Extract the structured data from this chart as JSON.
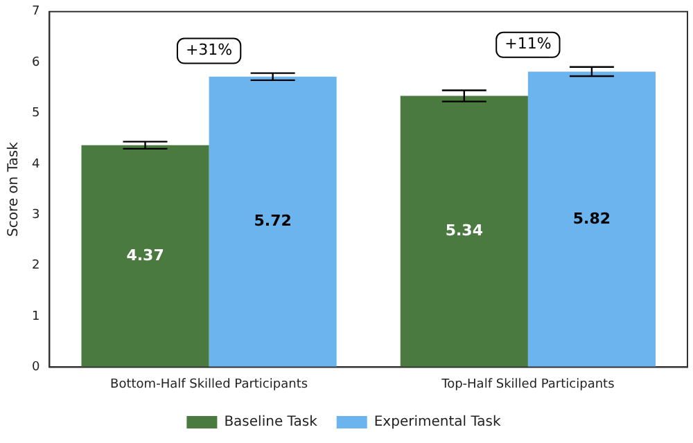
{
  "chart_data": {
    "type": "bar",
    "ylabel": "Score on Task",
    "categories": [
      "Bottom-Half Skilled Participants",
      "Top-Half Skilled Participants"
    ],
    "series": [
      {
        "name": "Baseline Task",
        "color": "#4a7a3f",
        "values": [
          4.37,
          5.34
        ],
        "errors": [
          0.07,
          0.11
        ]
      },
      {
        "name": "Experimental Task",
        "color": "#6cb4ee",
        "values": [
          5.72,
          5.82
        ],
        "errors": [
          0.07,
          0.09
        ]
      }
    ],
    "ylim": [
      0,
      7
    ],
    "yticks": [
      0,
      1,
      2,
      3,
      4,
      5,
      6,
      7
    ],
    "grid": false,
    "legend": "bottom",
    "data_labels": true,
    "annotations": [
      "+31%",
      "+11%"
    ]
  }
}
